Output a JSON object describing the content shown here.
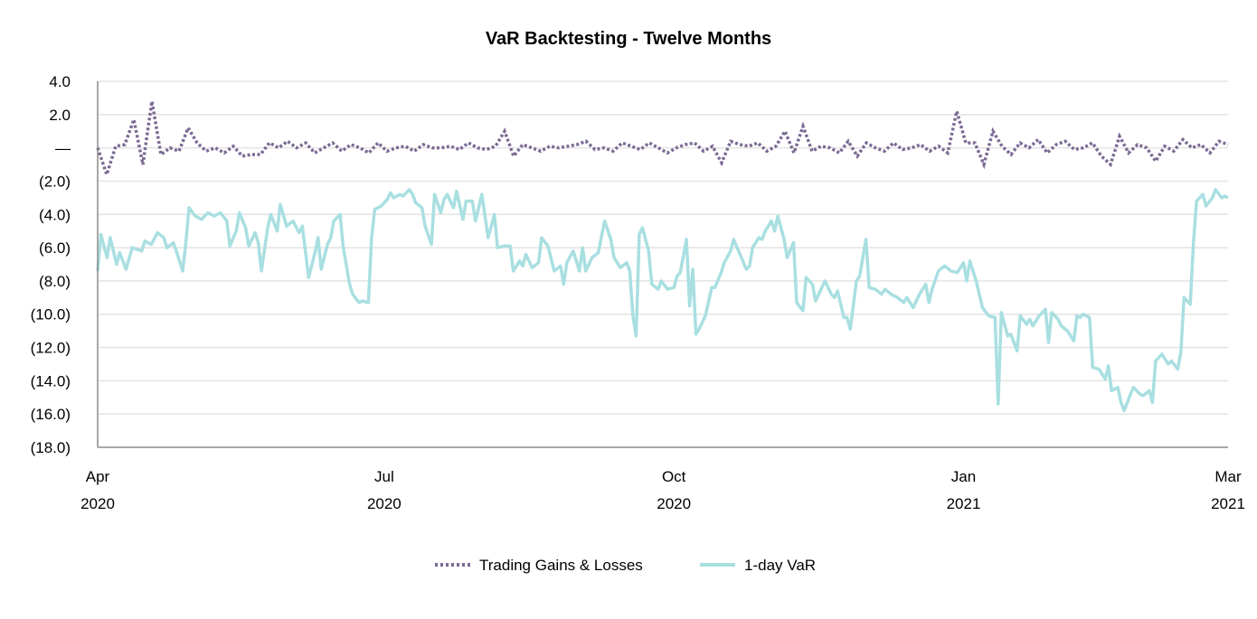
{
  "chart_data": {
    "type": "line",
    "title": "VaR Backtesting - Twelve Months",
    "xlabel": "",
    "ylabel": "",
    "x_unit": "days since 2020-04-01",
    "xlim": [
      0,
      359
    ],
    "ylim": [
      -18,
      4
    ],
    "y_ticks": [
      4,
      2,
      0,
      -2,
      -4,
      -6,
      -8,
      -10,
      -12,
      -14,
      -16,
      -18
    ],
    "y_tick_labels": [
      "4.0",
      "2.0",
      "—",
      "(2.0)",
      "(4.0)",
      "(6.0)",
      "(8.0)",
      "(10.0)",
      "(12.0)",
      "(14.0)",
      "(16.0)",
      "(18.0)"
    ],
    "x_ticks": [
      {
        "day": 0,
        "month": "Apr",
        "year": "2020"
      },
      {
        "day": 91,
        "month": "Jul",
        "year": "2020"
      },
      {
        "day": 183,
        "month": "Oct",
        "year": "2020"
      },
      {
        "day": 275,
        "month": "Jan",
        "year": "2021"
      },
      {
        "day": 359,
        "month": "Mar",
        "year": "2021"
      }
    ],
    "grid": true,
    "legend_position": "bottom-center",
    "series": [
      {
        "name": "Trading Gains & Losses",
        "color": "#7b6a94",
        "style": "dotted",
        "values": [
          0.0,
          -1.6,
          0.1,
          0.2,
          1.7,
          -1.0,
          2.8,
          -0.4,
          0.0,
          -0.2,
          1.2,
          0.3,
          -0.2,
          0.0,
          -0.3,
          0.1,
          -0.5,
          -0.4,
          -0.4,
          0.3,
          0.0,
          0.4,
          0.0,
          0.3,
          -0.3,
          0.0,
          0.3,
          -0.2,
          0.2,
          0.0,
          -0.3,
          0.3,
          -0.2,
          0.0,
          0.1,
          -0.2,
          0.2,
          0.0,
          0.0,
          0.1,
          -0.1,
          0.3,
          0.0,
          -0.1,
          0.1,
          1.0,
          -0.5,
          0.2,
          0.0,
          -0.2,
          0.1,
          0.0,
          0.1,
          0.2,
          0.4,
          -0.1,
          0.0,
          -0.2,
          0.3,
          0.1,
          -0.1,
          0.3,
          0.0,
          -0.3,
          0.0,
          0.2,
          0.3,
          -0.2,
          0.1,
          -0.9,
          0.4,
          0.2,
          0.1,
          0.3,
          -0.2,
          0.1,
          1.0,
          -0.3,
          1.3,
          -0.2,
          0.1,
          0.0,
          -0.3,
          0.4,
          -0.5,
          0.3,
          0.0,
          -0.2,
          0.3,
          -0.1,
          0.0,
          0.2,
          -0.2,
          0.1,
          -0.3,
          2.2,
          0.3,
          0.3,
          -1.0,
          1.0,
          0.1,
          -0.4,
          0.3,
          0.0,
          0.5,
          -0.3,
          0.2,
          0.4,
          -0.1,
          0.0,
          0.3,
          -0.5,
          -1.0,
          0.7,
          -0.3,
          0.2,
          0.0,
          -0.8,
          0.1,
          -0.2,
          0.5,
          0.0,
          0.2,
          -0.3,
          0.4,
          0.2
        ]
      },
      {
        "name": "1-day VaR",
        "color": "#a9dfe1",
        "style": "solid",
        "points": [
          [
            0,
            -7.4
          ],
          [
            1,
            -5.2
          ],
          [
            3,
            -6.6
          ],
          [
            4,
            -5.4
          ],
          [
            6,
            -7.0
          ],
          [
            7,
            -6.3
          ],
          [
            9,
            -7.3
          ],
          [
            11,
            -6.0
          ],
          [
            14,
            -6.2
          ],
          [
            15,
            -5.6
          ],
          [
            17,
            -5.8
          ],
          [
            19,
            -5.1
          ],
          [
            21,
            -5.4
          ],
          [
            22,
            -6.0
          ],
          [
            24,
            -5.7
          ],
          [
            25,
            -6.2
          ],
          [
            27,
            -7.4
          ],
          [
            28,
            -5.7
          ],
          [
            29,
            -3.6
          ],
          [
            31,
            -4.1
          ],
          [
            33,
            -4.3
          ],
          [
            35,
            -3.9
          ],
          [
            37,
            -4.1
          ],
          [
            39,
            -3.9
          ],
          [
            41,
            -4.4
          ],
          [
            42,
            -5.9
          ],
          [
            44,
            -5.0
          ],
          [
            45,
            -3.9
          ],
          [
            47,
            -4.8
          ],
          [
            48,
            -5.9
          ],
          [
            50,
            -5.1
          ],
          [
            51,
            -5.7
          ],
          [
            52,
            -7.4
          ],
          [
            54,
            -4.8
          ],
          [
            55,
            -4.0
          ],
          [
            57,
            -5.0
          ],
          [
            58,
            -3.4
          ],
          [
            60,
            -4.7
          ],
          [
            62,
            -4.4
          ],
          [
            64,
            -5.1
          ],
          [
            65,
            -4.7
          ],
          [
            67,
            -7.8
          ],
          [
            69,
            -6.3
          ],
          [
            70,
            -5.4
          ],
          [
            71,
            -7.3
          ],
          [
            73,
            -5.8
          ],
          [
            74,
            -5.4
          ],
          [
            75,
            -4.4
          ],
          [
            77,
            -4.0
          ],
          [
            78,
            -6.0
          ],
          [
            80,
            -8.2
          ],
          [
            81,
            -8.8
          ],
          [
            83,
            -9.3
          ],
          [
            84,
            -9.2
          ],
          [
            86,
            -9.3
          ],
          [
            87,
            -5.4
          ],
          [
            88,
            -3.7
          ],
          [
            90,
            -3.5
          ],
          [
            92,
            -3.1
          ],
          [
            93,
            -2.7
          ],
          [
            94,
            -3.0
          ],
          [
            96,
            -2.8
          ],
          [
            97,
            -2.9
          ],
          [
            99,
            -2.5
          ],
          [
            100,
            -2.8
          ],
          [
            101,
            -3.3
          ],
          [
            103,
            -3.6
          ],
          [
            104,
            -4.7
          ],
          [
            106,
            -5.8
          ],
          [
            107,
            -2.8
          ],
          [
            109,
            -3.9
          ],
          [
            110,
            -3.1
          ],
          [
            111,
            -2.8
          ],
          [
            113,
            -3.6
          ],
          [
            114,
            -2.6
          ],
          [
            116,
            -4.3
          ],
          [
            117,
            -3.2
          ],
          [
            119,
            -3.2
          ],
          [
            120,
            -4.4
          ],
          [
            122,
            -2.8
          ],
          [
            123,
            -4.1
          ],
          [
            124,
            -5.4
          ],
          [
            126,
            -4.0
          ],
          [
            127,
            -6.0
          ],
          [
            129,
            -5.9
          ],
          [
            131,
            -5.9
          ],
          [
            132,
            -7.4
          ],
          [
            134,
            -6.8
          ],
          [
            135,
            -7.1
          ],
          [
            136,
            -6.4
          ],
          [
            138,
            -7.2
          ],
          [
            140,
            -6.9
          ],
          [
            141,
            -5.4
          ],
          [
            143,
            -5.9
          ],
          [
            145,
            -7.4
          ],
          [
            147,
            -7.1
          ],
          [
            148,
            -8.2
          ],
          [
            149,
            -6.9
          ],
          [
            151,
            -6.2
          ],
          [
            153,
            -7.4
          ],
          [
            154,
            -6.0
          ],
          [
            155,
            -7.4
          ],
          [
            157,
            -6.6
          ],
          [
            159,
            -6.3
          ],
          [
            161,
            -4.4
          ],
          [
            163,
            -5.5
          ],
          [
            164,
            -6.6
          ],
          [
            166,
            -7.2
          ],
          [
            168,
            -6.9
          ],
          [
            169,
            -7.4
          ],
          [
            170,
            -10.1
          ],
          [
            171,
            -11.3
          ],
          [
            172,
            -5.2
          ],
          [
            173,
            -4.8
          ],
          [
            175,
            -6.2
          ],
          [
            176,
            -8.2
          ],
          [
            178,
            -8.5
          ],
          [
            179,
            -8.0
          ],
          [
            181,
            -8.5
          ],
          [
            183,
            -8.4
          ],
          [
            184,
            -7.7
          ],
          [
            185,
            -7.5
          ],
          [
            187,
            -5.5
          ],
          [
            188,
            -9.5
          ],
          [
            189,
            -7.3
          ],
          [
            190,
            -11.2
          ],
          [
            191,
            -10.9
          ],
          [
            193,
            -10.1
          ],
          [
            195,
            -8.4
          ],
          [
            196,
            -8.4
          ],
          [
            198,
            -7.5
          ],
          [
            199,
            -6.9
          ],
          [
            201,
            -6.2
          ],
          [
            202,
            -5.5
          ],
          [
            204,
            -6.4
          ],
          [
            206,
            -7.3
          ],
          [
            207,
            -7.1
          ],
          [
            208,
            -6.0
          ],
          [
            210,
            -5.4
          ],
          [
            211,
            -5.5
          ],
          [
            212,
            -5.0
          ],
          [
            214,
            -4.4
          ],
          [
            215,
            -5.0
          ],
          [
            216,
            -4.1
          ],
          [
            218,
            -5.5
          ],
          [
            219,
            -6.6
          ],
          [
            221,
            -5.7
          ],
          [
            222,
            -9.3
          ],
          [
            224,
            -9.8
          ],
          [
            225,
            -7.8
          ],
          [
            227,
            -8.2
          ],
          [
            228,
            -9.2
          ],
          [
            230,
            -8.4
          ],
          [
            231,
            -8.0
          ],
          [
            233,
            -8.8
          ],
          [
            234,
            -9.0
          ],
          [
            235,
            -8.6
          ],
          [
            237,
            -10.2
          ],
          [
            238,
            -10.2
          ],
          [
            239,
            -10.9
          ],
          [
            241,
            -8.0
          ],
          [
            242,
            -7.7
          ],
          [
            244,
            -5.5
          ],
          [
            245,
            -8.4
          ],
          [
            247,
            -8.5
          ],
          [
            249,
            -8.8
          ],
          [
            250,
            -8.5
          ],
          [
            252,
            -8.8
          ],
          [
            254,
            -9.0
          ],
          [
            256,
            -9.3
          ],
          [
            257,
            -9.0
          ],
          [
            259,
            -9.6
          ],
          [
            261,
            -8.8
          ],
          [
            263,
            -8.2
          ],
          [
            264,
            -9.3
          ],
          [
            265,
            -8.5
          ],
          [
            267,
            -7.4
          ],
          [
            269,
            -7.1
          ],
          [
            271,
            -7.4
          ],
          [
            273,
            -7.5
          ],
          [
            275,
            -6.9
          ],
          [
            276,
            -8.0
          ],
          [
            277,
            -6.8
          ],
          [
            279,
            -8.0
          ],
          [
            281,
            -9.6
          ],
          [
            283,
            -10.1
          ],
          [
            285,
            -10.2
          ],
          [
            286,
            -15.4
          ],
          [
            287,
            -9.9
          ],
          [
            289,
            -11.3
          ],
          [
            290,
            -11.2
          ],
          [
            292,
            -12.2
          ],
          [
            293,
            -10.1
          ],
          [
            295,
            -10.6
          ],
          [
            296,
            -10.3
          ],
          [
            297,
            -10.7
          ],
          [
            299,
            -10.1
          ],
          [
            301,
            -9.7
          ],
          [
            302,
            -11.7
          ],
          [
            303,
            -9.9
          ],
          [
            305,
            -10.3
          ],
          [
            306,
            -10.7
          ],
          [
            308,
            -11.0
          ],
          [
            310,
            -11.6
          ],
          [
            311,
            -10.1
          ],
          [
            312,
            -10.2
          ],
          [
            313,
            -10.0
          ],
          [
            315,
            -10.2
          ],
          [
            316,
            -13.2
          ],
          [
            318,
            -13.3
          ],
          [
            320,
            -13.9
          ],
          [
            321,
            -13.1
          ],
          [
            322,
            -14.6
          ],
          [
            324,
            -14.4
          ],
          [
            325,
            -15.3
          ],
          [
            326,
            -15.8
          ],
          [
            328,
            -14.8
          ],
          [
            329,
            -14.4
          ],
          [
            331,
            -14.8
          ],
          [
            332,
            -14.9
          ],
          [
            334,
            -14.6
          ],
          [
            335,
            -15.3
          ],
          [
            336,
            -12.8
          ],
          [
            338,
            -12.4
          ],
          [
            340,
            -13.0
          ],
          [
            341,
            -12.8
          ],
          [
            343,
            -13.3
          ],
          [
            344,
            -12.3
          ],
          [
            345,
            -9.0
          ],
          [
            347,
            -9.4
          ],
          [
            348,
            -5.7
          ],
          [
            349,
            -3.2
          ],
          [
            351,
            -2.8
          ],
          [
            352,
            -3.5
          ],
          [
            354,
            -3.0
          ],
          [
            355,
            -2.5
          ],
          [
            357,
            -3.0
          ],
          [
            358,
            -2.9
          ],
          [
            359,
            -3.0
          ]
        ]
      }
    ]
  }
}
